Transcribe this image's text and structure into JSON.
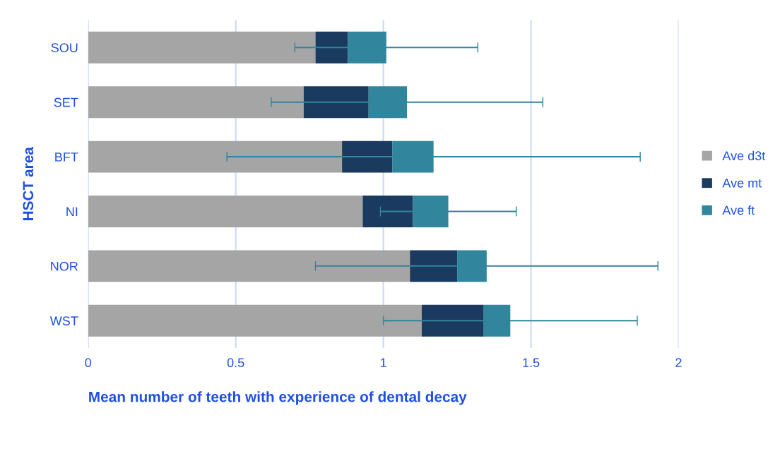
{
  "chart_data": {
    "type": "bar",
    "orientation": "horizontal",
    "stacked": true,
    "xlabel": "Mean number of teeth with experience of dental decay",
    "ylabel": "HSCT area",
    "categories": [
      "SOU",
      "SET",
      "BFT",
      "NI",
      "NOR",
      "WST"
    ],
    "series": [
      {
        "name": "Ave d3t",
        "color": "#a5a5a5",
        "values": [
          0.77,
          0.73,
          0.86,
          0.93,
          1.09,
          1.13
        ]
      },
      {
        "name": "Ave mt",
        "color": "#1a3a5f",
        "values": [
          0.11,
          0.22,
          0.17,
          0.17,
          0.16,
          0.21
        ]
      },
      {
        "name": "Ave ft",
        "color": "#31859c",
        "values": [
          0.13,
          0.13,
          0.14,
          0.12,
          0.1,
          0.09
        ],
        "errors": [
          0.31,
          0.46,
          0.7,
          0.23,
          0.58,
          0.43
        ]
      }
    ],
    "xlim": [
      0,
      2
    ],
    "xticks": [
      0,
      0.5,
      1,
      1.5,
      2
    ],
    "grid": "x",
    "legend": "right"
  }
}
